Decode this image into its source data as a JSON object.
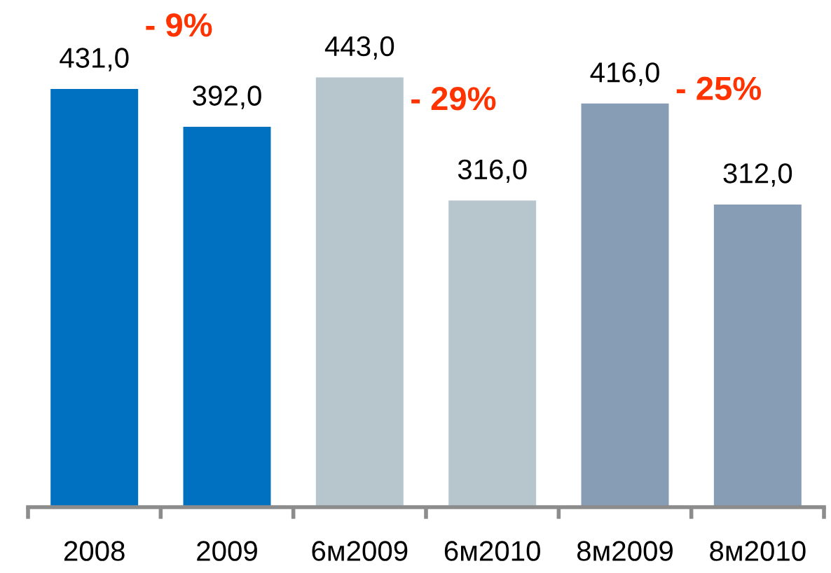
{
  "chart_data": {
    "type": "bar",
    "categories": [
      "2008",
      "2009",
      "6м2009",
      "6м2010",
      "8м2009",
      "8м2010"
    ],
    "values": [
      431.0,
      392.0,
      443.0,
      316.0,
      416.0,
      312.0
    ],
    "colors": [
      "#0070c0",
      "#0070c0",
      "#b7c5cd",
      "#b7c5cd",
      "#879db5",
      "#879db5"
    ],
    "value_labels": [
      "431,0",
      "392,0",
      "443,0",
      "316,0",
      "416,0",
      "312,0"
    ],
    "annotations": [
      "- 9%",
      "- 29%",
      "- 25%"
    ],
    "grid": false,
    "legend": false,
    "tick_labels": "x"
  }
}
